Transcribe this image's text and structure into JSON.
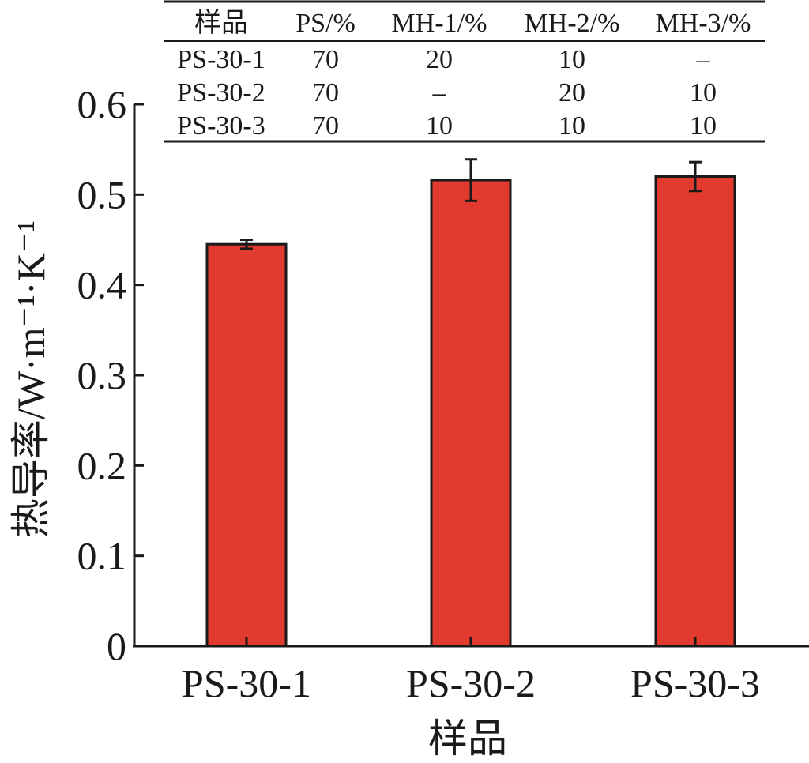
{
  "chart_data": {
    "type": "bar",
    "categories": [
      "PS-30-1",
      "PS-30-2",
      "PS-30-3"
    ],
    "values": [
      0.445,
      0.516,
      0.52
    ],
    "errors": [
      0.005,
      0.023,
      0.016
    ],
    "bar_color": "#e33a2f",
    "xlabel": "样品",
    "ylabel": "热导率/W·m⁻¹·K⁻¹",
    "ylim": [
      0,
      0.6
    ],
    "yticks": [
      "0",
      "0.1",
      "0.2",
      "0.3",
      "0.4",
      "0.5",
      "0.6"
    ],
    "grid": false,
    "inset_table": {
      "headers": [
        "样品",
        "PS/%",
        "MH-1/%",
        "MH-2/%",
        "MH-3/%"
      ],
      "rows": [
        [
          "PS-30-1",
          "70",
          "20",
          "10",
          "–"
        ],
        [
          "PS-30-2",
          "70",
          "–",
          "20",
          "10"
        ],
        [
          "PS-30-3",
          "70",
          "10",
          "10",
          "10"
        ]
      ]
    }
  }
}
